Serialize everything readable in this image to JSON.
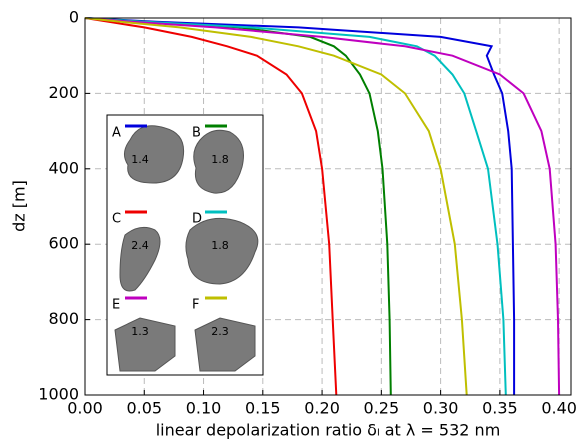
{
  "chart_data": {
    "type": "line",
    "orientation": "horizontal",
    "x_label": "dz [m]",
    "y_label": "linear depolarization ratio δₗ at λ = 532 nm",
    "x": [
      0,
      10,
      25,
      50,
      75,
      100,
      150,
      200,
      300,
      400,
      600,
      800,
      1000
    ],
    "xlim": [
      0,
      1000
    ],
    "xticks": [
      0,
      200,
      400,
      600,
      800,
      1000
    ],
    "x_inverted": true,
    "ylim": [
      0,
      0.41
    ],
    "yticks": [
      {
        "value": 0,
        "label": "0.00"
      },
      {
        "value": 0.05,
        "label": "0.05"
      },
      {
        "value": 0.1,
        "label": "0.10"
      },
      {
        "value": 0.15,
        "label": "0.15"
      },
      {
        "value": 0.2,
        "label": "0.20"
      },
      {
        "value": 0.25,
        "label": "0.25"
      },
      {
        "value": 0.3,
        "label": "0.30"
      },
      {
        "value": 0.35,
        "label": "0.35"
      },
      {
        "value": 0.4,
        "label": "0.40"
      }
    ],
    "grid": true,
    "series": [
      {
        "name": "A",
        "inset_label": 1.4,
        "color": "#0000dd",
        "values": [
          0,
          0.06,
          0.18,
          0.3,
          0.343,
          0.339,
          0.345,
          0.352,
          0.357,
          0.36,
          0.361,
          0.362,
          0.362
        ]
      },
      {
        "name": "B",
        "inset_label": 1.8,
        "color": "#007f00",
        "values": [
          0,
          0.05,
          0.13,
          0.19,
          0.21,
          0.22,
          0.232,
          0.24,
          0.247,
          0.251,
          0.255,
          0.257,
          0.258
        ]
      },
      {
        "name": "C",
        "inset_label": 2.4,
        "color": "#ee0000",
        "values": [
          0,
          0.02,
          0.05,
          0.09,
          0.12,
          0.145,
          0.17,
          0.183,
          0.195,
          0.2,
          0.206,
          0.209,
          0.212
        ]
      },
      {
        "name": "D",
        "inset_label": 1.8,
        "color": "#00bfbf",
        "values": [
          0,
          0.05,
          0.14,
          0.24,
          0.28,
          0.295,
          0.31,
          0.32,
          0.33,
          0.34,
          0.348,
          0.353,
          0.355
        ]
      },
      {
        "name": "E",
        "inset_label": 1.3,
        "color": "#bf00bf",
        "values": [
          0,
          0.04,
          0.11,
          0.2,
          0.27,
          0.31,
          0.35,
          0.37,
          0.385,
          0.392,
          0.397,
          0.399,
          0.4
        ]
      },
      {
        "name": "F",
        "inset_label": 2.3,
        "color": "#bfbf00",
        "values": [
          0,
          0.03,
          0.08,
          0.14,
          0.18,
          0.21,
          0.25,
          0.27,
          0.29,
          0.3,
          0.312,
          0.318,
          0.322
        ]
      }
    ]
  }
}
